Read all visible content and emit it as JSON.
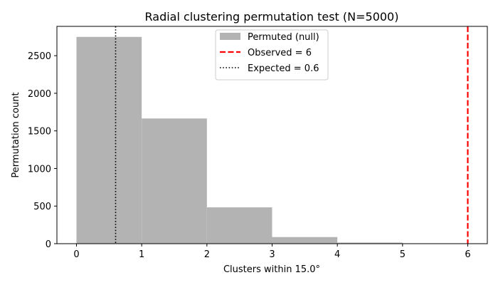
{
  "chart_data": {
    "type": "bar",
    "title": "Radial clustering permutation test (N=5000)",
    "xlabel": "Clusters within 15.0°",
    "ylabel": "Permutation count",
    "xlim": [
      -0.3,
      6.3
    ],
    "ylim": [
      0,
      2890
    ],
    "x_ticks": [
      0,
      1,
      2,
      3,
      4,
      5,
      6
    ],
    "y_ticks": [
      0,
      500,
      1000,
      1500,
      2000,
      2500
    ],
    "bins": [
      {
        "x0": 0,
        "x1": 1,
        "value": 2750
      },
      {
        "x0": 1,
        "x1": 2,
        "value": 1665
      },
      {
        "x0": 2,
        "x1": 3,
        "value": 483
      },
      {
        "x0": 3,
        "x1": 4,
        "value": 88
      },
      {
        "x0": 4,
        "x1": 5,
        "value": 14
      },
      {
        "x0": 5,
        "x1": 6,
        "value": 0
      }
    ],
    "observed": 6,
    "expected": 0.6,
    "legend": {
      "position": "top-center",
      "items": [
        {
          "key": "null",
          "label": "Permuted (null)",
          "style": "patch"
        },
        {
          "key": "observed",
          "label": "Observed = 6",
          "style": "dashed"
        },
        {
          "key": "expected",
          "label": "Expected = 0.6",
          "style": "dotted"
        }
      ]
    },
    "colors": {
      "bar": "#b3b3b3",
      "observed": "#ff0000",
      "expected": "#000000"
    },
    "grid": false
  }
}
